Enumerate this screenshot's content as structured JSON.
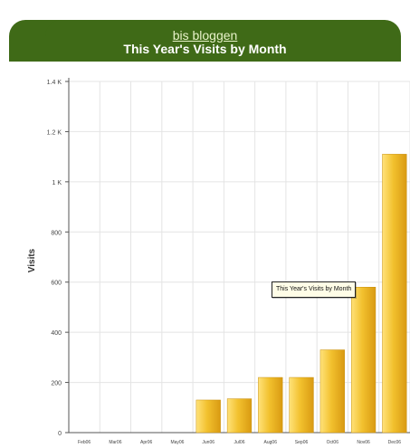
{
  "header": {
    "blog_name": "bis bloggen",
    "title": "This Year's Visits by Month"
  },
  "tooltip": "This Year's Visits by Month",
  "colors": {
    "header_bg": "#3f6a17",
    "bar": "#f2c12e",
    "grid": "#e4e4e4"
  },
  "chart_data": {
    "type": "bar",
    "title": "This Year's Visits by Month",
    "ylabel": "Visits",
    "xlabel": "",
    "ylim": [
      0,
      1400
    ],
    "yticks": [
      0,
      200,
      400,
      600,
      800,
      1000,
      1200,
      1400
    ],
    "ytick_labels": [
      "0",
      "200",
      "400",
      "600",
      "800",
      "1 K",
      "1.2 K",
      "1.4 K"
    ],
    "categories": [
      "Feb06",
      "Mar06",
      "Apr06",
      "May06",
      "Jun06",
      "Jul06",
      "Aug06",
      "Sep06",
      "Oct06",
      "Nov06",
      "Dec06"
    ],
    "values": [
      0,
      0,
      0,
      0,
      130,
      135,
      220,
      220,
      330,
      580,
      1110
    ],
    "grid": true
  }
}
